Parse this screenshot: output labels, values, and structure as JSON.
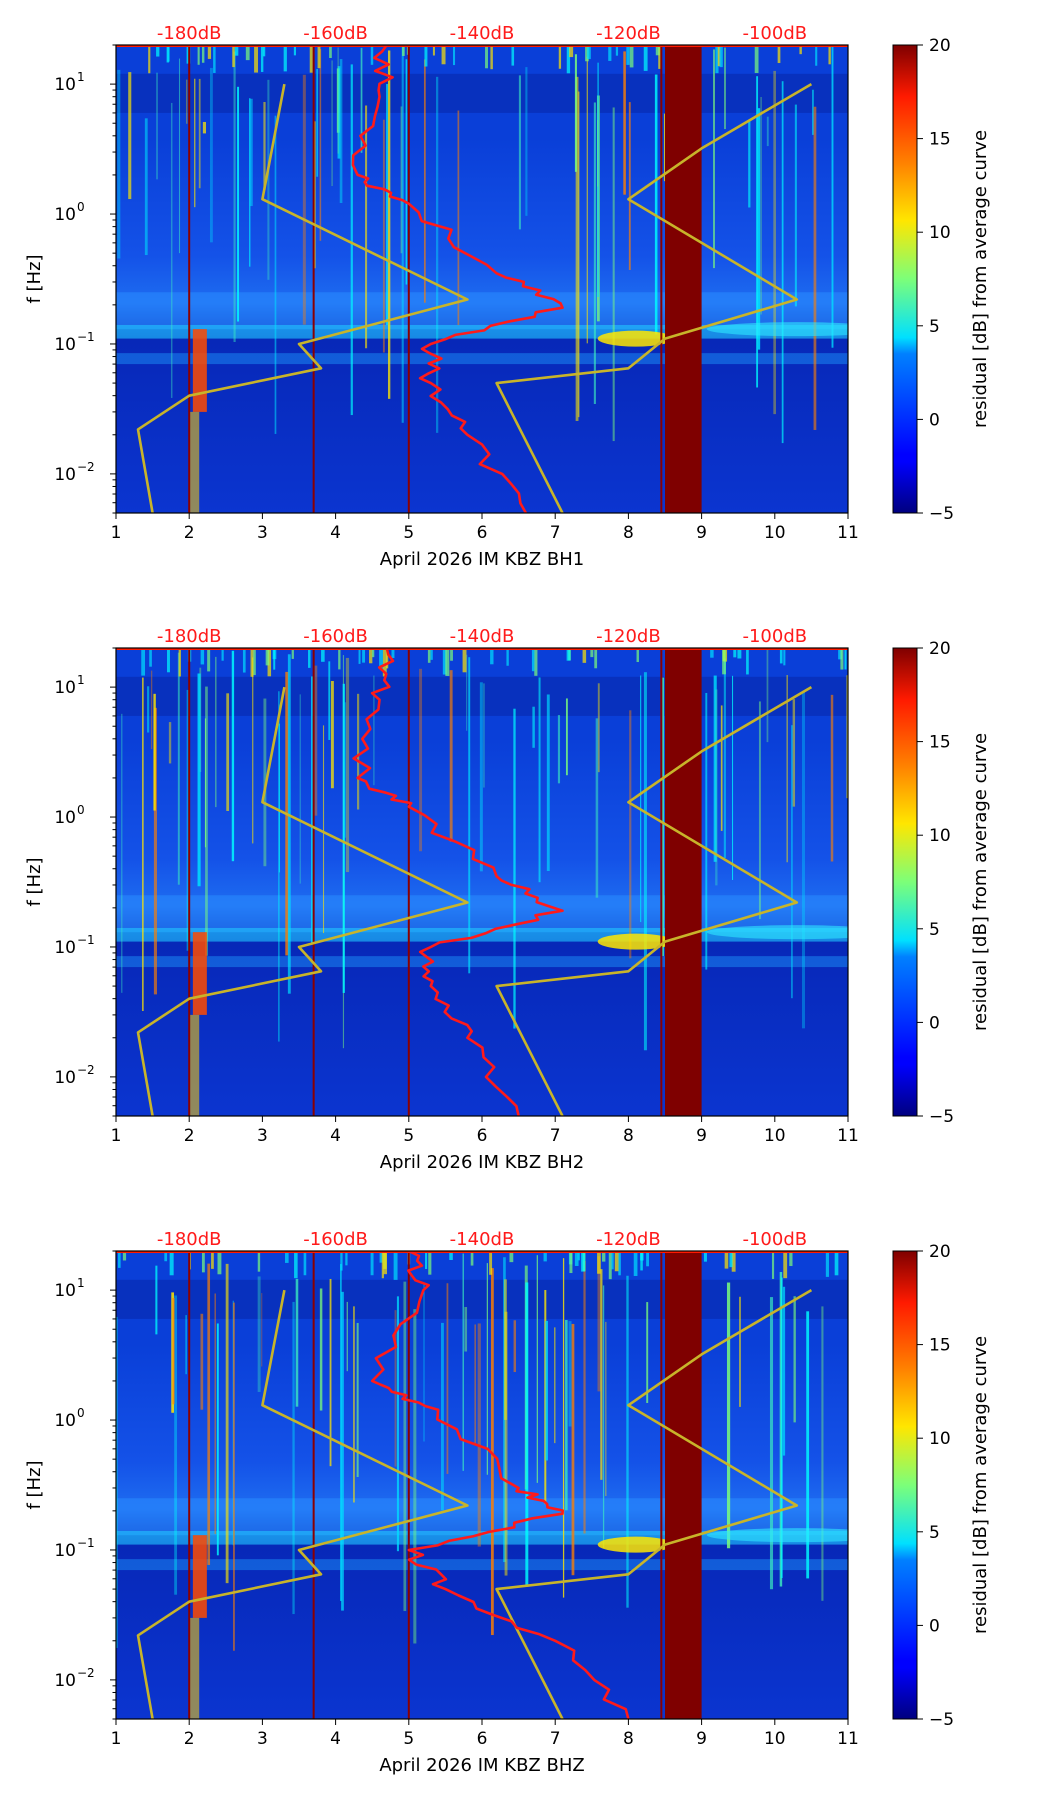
{
  "chart_data": [
    {
      "type": "heatmap",
      "xlabel": "April 2026 IM KBZ  BH1",
      "ylabel": "f [Hz]",
      "colorbar_label": "residual [dB] from average curve",
      "x_ticks": [
        "1",
        "2",
        "3",
        "4",
        "5",
        "6",
        "7",
        "8",
        "9",
        "10",
        "11"
      ],
      "xlim": [
        1,
        11
      ],
      "y_ticks": [
        {
          "base": "10",
          "exp": "1",
          "value": 10
        },
        {
          "base": "10",
          "exp": "0",
          "value": 1
        },
        {
          "base": "10",
          "exp": "−1",
          "value": 0.1
        },
        {
          "base": "10",
          "exp": "−2",
          "value": 0.01
        }
      ],
      "ylim": [
        0.005,
        20
      ],
      "colorbar_ticks": [
        "20",
        "15",
        "10",
        "5",
        "0",
        "−5"
      ],
      "clim": [
        -5,
        20
      ],
      "top_db_labels": [
        "-180dB",
        "-160dB",
        "-140dB",
        "-120dB",
        "-100dB"
      ],
      "top_db_positions": [
        2,
        4,
        6,
        8,
        10
      ],
      "saturated_band": [
        8.5,
        9.0
      ],
      "vertical_lines": [
        2,
        3.7,
        5,
        8.45
      ],
      "yellow_curve": [
        [
          3.3,
          10
        ],
        [
          3.0,
          1.3
        ],
        [
          5.8,
          0.22
        ],
        [
          3.5,
          0.1
        ],
        [
          3.8,
          0.065
        ],
        [
          2.0,
          0.04
        ],
        [
          1.3,
          0.022
        ],
        [
          1.5,
          0.005
        ]
      ],
      "yellow_curve_right": [
        [
          10.5,
          10
        ],
        [
          9.0,
          3.2
        ],
        [
          8.0,
          1.3
        ],
        [
          10.3,
          0.22
        ],
        [
          8.5,
          0.11
        ],
        [
          8.0,
          0.065
        ],
        [
          6.2,
          0.05
        ],
        [
          7.1,
          0.005
        ]
      ],
      "red_curve": [
        [
          4.7,
          20
        ],
        [
          4.6,
          8
        ],
        [
          4.3,
          2.0
        ],
        [
          5.0,
          1.2
        ],
        [
          6.2,
          0.35
        ],
        [
          7.1,
          0.19
        ],
        [
          5.3,
          0.1
        ],
        [
          5.3,
          0.05
        ],
        [
          5.8,
          0.02
        ],
        [
          6.6,
          0.005
        ]
      ]
    },
    {
      "type": "heatmap",
      "xlabel": "April 2026 IM KBZ  BH2",
      "ylabel": "f [Hz]",
      "colorbar_label": "residual [dB] from average curve",
      "x_ticks": [
        "1",
        "2",
        "3",
        "4",
        "5",
        "6",
        "7",
        "8",
        "9",
        "10",
        "11"
      ],
      "xlim": [
        1,
        11
      ],
      "y_ticks": [
        {
          "base": "10",
          "exp": "1",
          "value": 10
        },
        {
          "base": "10",
          "exp": "0",
          "value": 1
        },
        {
          "base": "10",
          "exp": "−1",
          "value": 0.1
        },
        {
          "base": "10",
          "exp": "−2",
          "value": 0.01
        }
      ],
      "ylim": [
        0.005,
        20
      ],
      "colorbar_ticks": [
        "20",
        "15",
        "10",
        "5",
        "0",
        "−5"
      ],
      "clim": [
        -5,
        20
      ],
      "top_db_labels": [
        "-180dB",
        "-160dB",
        "-140dB",
        "-120dB",
        "-100dB"
      ],
      "top_db_positions": [
        2,
        4,
        6,
        8,
        10
      ],
      "saturated_band": [
        8.5,
        9.0
      ],
      "vertical_lines": [
        2,
        3.7,
        5,
        8.45
      ],
      "yellow_curve": [
        [
          3.3,
          10
        ],
        [
          3.0,
          1.3
        ],
        [
          5.8,
          0.22
        ],
        [
          3.5,
          0.1
        ],
        [
          3.8,
          0.065
        ],
        [
          2.0,
          0.04
        ],
        [
          1.3,
          0.022
        ],
        [
          1.5,
          0.005
        ]
      ],
      "yellow_curve_right": [
        [
          10.5,
          10
        ],
        [
          9.0,
          3.2
        ],
        [
          8.0,
          1.3
        ],
        [
          10.3,
          0.22
        ],
        [
          8.5,
          0.11
        ],
        [
          8.0,
          0.065
        ],
        [
          6.2,
          0.05
        ],
        [
          7.1,
          0.005
        ]
      ],
      "red_curve": [
        [
          4.7,
          20
        ],
        [
          4.6,
          8
        ],
        [
          4.3,
          2.0
        ],
        [
          5.0,
          1.2
        ],
        [
          6.2,
          0.35
        ],
        [
          7.1,
          0.19
        ],
        [
          5.3,
          0.1
        ],
        [
          5.3,
          0.05
        ],
        [
          5.8,
          0.02
        ],
        [
          6.5,
          0.005
        ]
      ]
    },
    {
      "type": "heatmap",
      "xlabel": "April 2026 IM KBZ  BHZ",
      "ylabel": "f [Hz]",
      "colorbar_label": "residual [dB] from average curve",
      "x_ticks": [
        "1",
        "2",
        "3",
        "4",
        "5",
        "6",
        "7",
        "8",
        "9",
        "10",
        "11"
      ],
      "xlim": [
        1,
        11
      ],
      "y_ticks": [
        {
          "base": "10",
          "exp": "1",
          "value": 10
        },
        {
          "base": "10",
          "exp": "0",
          "value": 1
        },
        {
          "base": "10",
          "exp": "−1",
          "value": 0.1
        },
        {
          "base": "10",
          "exp": "−2",
          "value": 0.01
        }
      ],
      "ylim": [
        0.005,
        20
      ],
      "colorbar_ticks": [
        "20",
        "15",
        "10",
        "5",
        "0",
        "−5"
      ],
      "clim": [
        -5,
        20
      ],
      "top_db_labels": [
        "-180dB",
        "-160dB",
        "-140dB",
        "-120dB",
        "-100dB"
      ],
      "top_db_positions": [
        2,
        4,
        6,
        8,
        10
      ],
      "saturated_band": [
        8.5,
        9.0
      ],
      "vertical_lines": [
        2,
        3.7,
        5,
        8.45
      ],
      "yellow_curve": [
        [
          3.3,
          10
        ],
        [
          3.0,
          1.3
        ],
        [
          5.8,
          0.22
        ],
        [
          3.5,
          0.1
        ],
        [
          3.8,
          0.065
        ],
        [
          2.0,
          0.04
        ],
        [
          1.3,
          0.022
        ],
        [
          1.5,
          0.005
        ]
      ],
      "yellow_curve_right": [
        [
          10.5,
          10
        ],
        [
          9.0,
          3.2
        ],
        [
          8.0,
          1.3
        ],
        [
          10.3,
          0.22
        ],
        [
          8.5,
          0.11
        ],
        [
          8.0,
          0.065
        ],
        [
          6.2,
          0.05
        ],
        [
          7.1,
          0.005
        ]
      ],
      "red_curve": [
        [
          5.0,
          20
        ],
        [
          5.2,
          10
        ],
        [
          4.5,
          2.0
        ],
        [
          5.4,
          1.2
        ],
        [
          6.5,
          0.3
        ],
        [
          7.1,
          0.19
        ],
        [
          5.0,
          0.1
        ],
        [
          5.5,
          0.05
        ],
        [
          7.0,
          0.02
        ],
        [
          8.0,
          0.005
        ]
      ]
    }
  ]
}
